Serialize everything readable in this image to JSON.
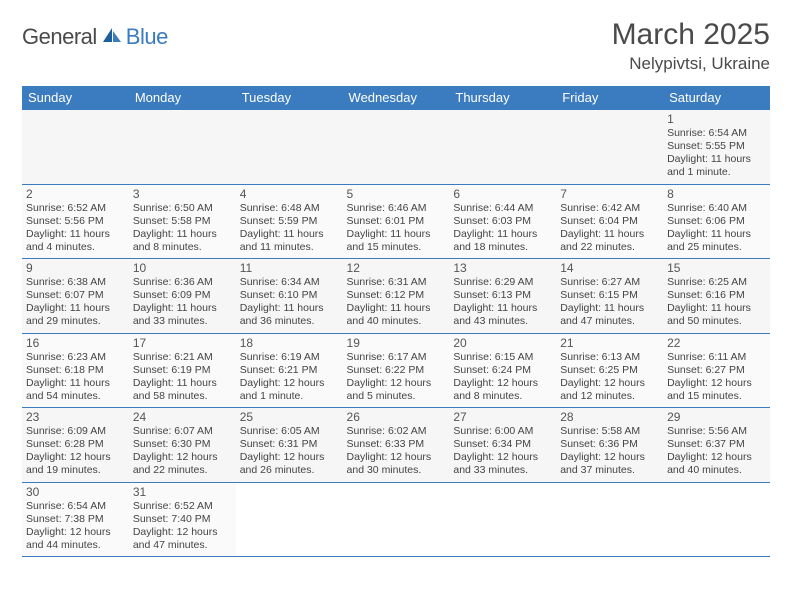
{
  "brand": {
    "part1": "General",
    "part2": "Blue"
  },
  "title": "March 2025",
  "location": "Nelypivtsi, Ukraine",
  "colors": {
    "header_bg": "#3b7bbf",
    "header_text": "#ffffff",
    "border": "#3b7bbf",
    "text": "#444444",
    "title_text": "#4a4a4a",
    "row_bg_a": "#fafafa",
    "row_bg_b": "#f6f6f6",
    "page_bg": "#ffffff"
  },
  "weekdays": [
    "Sunday",
    "Monday",
    "Tuesday",
    "Wednesday",
    "Thursday",
    "Friday",
    "Saturday"
  ],
  "weeks": [
    [
      null,
      null,
      null,
      null,
      null,
      null,
      {
        "n": "1",
        "sunrise": "Sunrise: 6:54 AM",
        "sunset": "Sunset: 5:55 PM",
        "daylight": "Daylight: 11 hours and 1 minute."
      }
    ],
    [
      {
        "n": "2",
        "sunrise": "Sunrise: 6:52 AM",
        "sunset": "Sunset: 5:56 PM",
        "daylight": "Daylight: 11 hours and 4 minutes."
      },
      {
        "n": "3",
        "sunrise": "Sunrise: 6:50 AM",
        "sunset": "Sunset: 5:58 PM",
        "daylight": "Daylight: 11 hours and 8 minutes."
      },
      {
        "n": "4",
        "sunrise": "Sunrise: 6:48 AM",
        "sunset": "Sunset: 5:59 PM",
        "daylight": "Daylight: 11 hours and 11 minutes."
      },
      {
        "n": "5",
        "sunrise": "Sunrise: 6:46 AM",
        "sunset": "Sunset: 6:01 PM",
        "daylight": "Daylight: 11 hours and 15 minutes."
      },
      {
        "n": "6",
        "sunrise": "Sunrise: 6:44 AM",
        "sunset": "Sunset: 6:03 PM",
        "daylight": "Daylight: 11 hours and 18 minutes."
      },
      {
        "n": "7",
        "sunrise": "Sunrise: 6:42 AM",
        "sunset": "Sunset: 6:04 PM",
        "daylight": "Daylight: 11 hours and 22 minutes."
      },
      {
        "n": "8",
        "sunrise": "Sunrise: 6:40 AM",
        "sunset": "Sunset: 6:06 PM",
        "daylight": "Daylight: 11 hours and 25 minutes."
      }
    ],
    [
      {
        "n": "9",
        "sunrise": "Sunrise: 6:38 AM",
        "sunset": "Sunset: 6:07 PM",
        "daylight": "Daylight: 11 hours and 29 minutes."
      },
      {
        "n": "10",
        "sunrise": "Sunrise: 6:36 AM",
        "sunset": "Sunset: 6:09 PM",
        "daylight": "Daylight: 11 hours and 33 minutes."
      },
      {
        "n": "11",
        "sunrise": "Sunrise: 6:34 AM",
        "sunset": "Sunset: 6:10 PM",
        "daylight": "Daylight: 11 hours and 36 minutes."
      },
      {
        "n": "12",
        "sunrise": "Sunrise: 6:31 AM",
        "sunset": "Sunset: 6:12 PM",
        "daylight": "Daylight: 11 hours and 40 minutes."
      },
      {
        "n": "13",
        "sunrise": "Sunrise: 6:29 AM",
        "sunset": "Sunset: 6:13 PM",
        "daylight": "Daylight: 11 hours and 43 minutes."
      },
      {
        "n": "14",
        "sunrise": "Sunrise: 6:27 AM",
        "sunset": "Sunset: 6:15 PM",
        "daylight": "Daylight: 11 hours and 47 minutes."
      },
      {
        "n": "15",
        "sunrise": "Sunrise: 6:25 AM",
        "sunset": "Sunset: 6:16 PM",
        "daylight": "Daylight: 11 hours and 50 minutes."
      }
    ],
    [
      {
        "n": "16",
        "sunrise": "Sunrise: 6:23 AM",
        "sunset": "Sunset: 6:18 PM",
        "daylight": "Daylight: 11 hours and 54 minutes."
      },
      {
        "n": "17",
        "sunrise": "Sunrise: 6:21 AM",
        "sunset": "Sunset: 6:19 PM",
        "daylight": "Daylight: 11 hours and 58 minutes."
      },
      {
        "n": "18",
        "sunrise": "Sunrise: 6:19 AM",
        "sunset": "Sunset: 6:21 PM",
        "daylight": "Daylight: 12 hours and 1 minute."
      },
      {
        "n": "19",
        "sunrise": "Sunrise: 6:17 AM",
        "sunset": "Sunset: 6:22 PM",
        "daylight": "Daylight: 12 hours and 5 minutes."
      },
      {
        "n": "20",
        "sunrise": "Sunrise: 6:15 AM",
        "sunset": "Sunset: 6:24 PM",
        "daylight": "Daylight: 12 hours and 8 minutes."
      },
      {
        "n": "21",
        "sunrise": "Sunrise: 6:13 AM",
        "sunset": "Sunset: 6:25 PM",
        "daylight": "Daylight: 12 hours and 12 minutes."
      },
      {
        "n": "22",
        "sunrise": "Sunrise: 6:11 AM",
        "sunset": "Sunset: 6:27 PM",
        "daylight": "Daylight: 12 hours and 15 minutes."
      }
    ],
    [
      {
        "n": "23",
        "sunrise": "Sunrise: 6:09 AM",
        "sunset": "Sunset: 6:28 PM",
        "daylight": "Daylight: 12 hours and 19 minutes."
      },
      {
        "n": "24",
        "sunrise": "Sunrise: 6:07 AM",
        "sunset": "Sunset: 6:30 PM",
        "daylight": "Daylight: 12 hours and 22 minutes."
      },
      {
        "n": "25",
        "sunrise": "Sunrise: 6:05 AM",
        "sunset": "Sunset: 6:31 PM",
        "daylight": "Daylight: 12 hours and 26 minutes."
      },
      {
        "n": "26",
        "sunrise": "Sunrise: 6:02 AM",
        "sunset": "Sunset: 6:33 PM",
        "daylight": "Daylight: 12 hours and 30 minutes."
      },
      {
        "n": "27",
        "sunrise": "Sunrise: 6:00 AM",
        "sunset": "Sunset: 6:34 PM",
        "daylight": "Daylight: 12 hours and 33 minutes."
      },
      {
        "n": "28",
        "sunrise": "Sunrise: 5:58 AM",
        "sunset": "Sunset: 6:36 PM",
        "daylight": "Daylight: 12 hours and 37 minutes."
      },
      {
        "n": "29",
        "sunrise": "Sunrise: 5:56 AM",
        "sunset": "Sunset: 6:37 PM",
        "daylight": "Daylight: 12 hours and 40 minutes."
      }
    ],
    [
      {
        "n": "30",
        "sunrise": "Sunrise: 6:54 AM",
        "sunset": "Sunset: 7:38 PM",
        "daylight": "Daylight: 12 hours and 44 minutes."
      },
      {
        "n": "31",
        "sunrise": "Sunrise: 6:52 AM",
        "sunset": "Sunset: 7:40 PM",
        "daylight": "Daylight: 12 hours and 47 minutes."
      },
      null,
      null,
      null,
      null,
      null
    ]
  ]
}
